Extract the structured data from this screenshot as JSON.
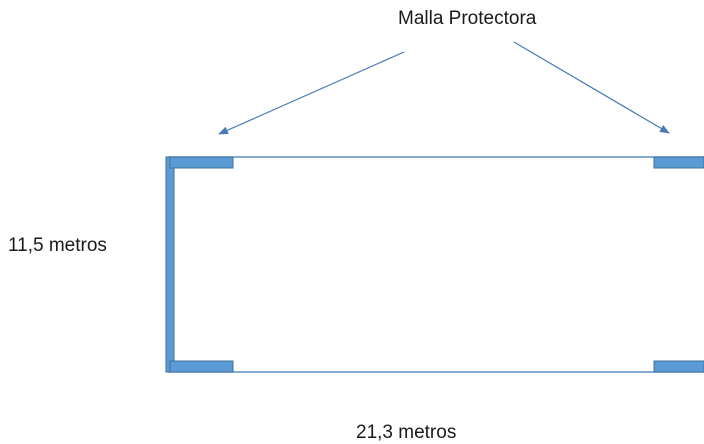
{
  "labels": {
    "title": "Malla Protectora",
    "height": "11,5 metros",
    "width": "21,3 metros"
  },
  "colors": {
    "mesh_fill": "#5b9bd5",
    "mesh_stroke": "#41719c",
    "outline": "#5b8fc4",
    "arrow": "#4a7ab5"
  }
}
